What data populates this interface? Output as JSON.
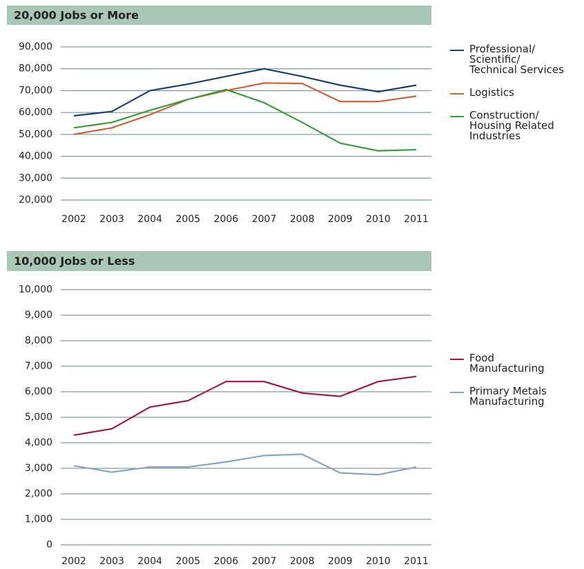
{
  "chart_data": [
    {
      "type": "line",
      "title": "20,000 Jobs or More",
      "categories": [
        "2002",
        "2003",
        "2004",
        "2005",
        "2006",
        "2007",
        "2008",
        "2009",
        "2010",
        "2011"
      ],
      "ylim": [
        20000,
        90000
      ],
      "yticks": [
        {
          "value": 20000,
          "label": "20,000"
        },
        {
          "value": 30000,
          "label": "30,000"
        },
        {
          "value": 40000,
          "label": "40,000"
        },
        {
          "value": 50000,
          "label": "50,000"
        },
        {
          "value": 60000,
          "label": "60,000"
        },
        {
          "value": 70000,
          "label": "70,000"
        },
        {
          "value": 80000,
          "label": "80,000"
        },
        {
          "value": 90000,
          "label": "90,000"
        }
      ],
      "grid": true,
      "legend": "right",
      "series": [
        {
          "name": "Professional/\nScientific/\nTechnical Services",
          "color": "#1b3f6b",
          "values": [
            58500,
            60500,
            70000,
            73000,
            76500,
            80000,
            76500,
            72500,
            69500,
            72500
          ]
        },
        {
          "name": "Logistics",
          "color": "#c8643a",
          "values": [
            50000,
            53000,
            59000,
            66000,
            70000,
            73500,
            73300,
            65000,
            65000,
            67500
          ]
        },
        {
          "name": "Construction/\nHousing Related\nIndustries",
          "color": "#3a9a3e",
          "values": [
            53000,
            55500,
            61000,
            66000,
            70500,
            64500,
            55500,
            46000,
            42500,
            43000
          ]
        }
      ]
    },
    {
      "type": "line",
      "title": "10,000 Jobs or Less",
      "categories": [
        "2002",
        "2003",
        "2004",
        "2005",
        "2006",
        "2007",
        "2008",
        "2009",
        "2010",
        "2011"
      ],
      "ylim": [
        0,
        10000
      ],
      "yticks": [
        0,
        {
          "value": 1000,
          "label": "1,000"
        },
        {
          "value": 2000,
          "label": "2,000"
        },
        {
          "value": 3000,
          "label": "3,000"
        },
        {
          "value": 4000,
          "label": "4,000"
        },
        {
          "value": 5000,
          "label": "5,000"
        },
        {
          "value": 6000,
          "label": "6,000"
        },
        {
          "value": 7000,
          "label": "7,000"
        },
        {
          "value": 8000,
          "label": "8,000"
        },
        {
          "value": 9000,
          "label": "9,000"
        },
        {
          "value": 10000,
          "label": "10,000"
        }
      ],
      "grid": true,
      "legend": "right",
      "series": [
        {
          "name": "Food\nManufacturing",
          "color": "#9b1b3f",
          "values": [
            4300,
            4550,
            5400,
            5650,
            6400,
            6400,
            5950,
            5820,
            6400,
            6600
          ]
        },
        {
          "name": "Primary Metals\nManufacturing",
          "color": "#8aa4c4",
          "values": [
            3100,
            2850,
            3050,
            3050,
            3250,
            3500,
            3550,
            2820,
            2750,
            3050
          ]
        }
      ]
    }
  ]
}
